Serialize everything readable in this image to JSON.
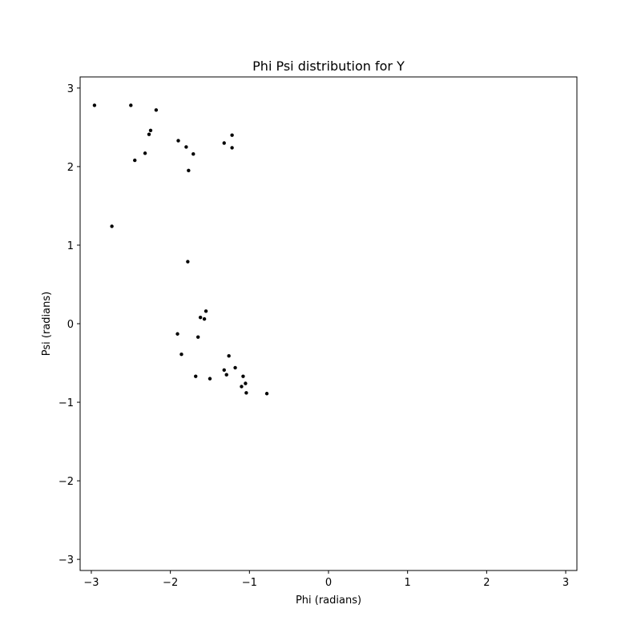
{
  "chart_data": {
    "type": "scatter",
    "title": "Phi Psi distribution for Y",
    "xlabel": "Phi (radians)",
    "ylabel": "Psi (radians)",
    "xlim": [
      -3.1416,
      3.1416
    ],
    "ylim": [
      -3.1416,
      3.1416
    ],
    "xticks": [
      -3,
      -2,
      -1,
      0,
      1,
      2,
      3
    ],
    "yticks": [
      -3,
      -2,
      -1,
      0,
      1,
      2,
      3
    ],
    "xtick_labels": [
      "−3",
      "−2",
      "−1",
      "0",
      "1",
      "2",
      "3"
    ],
    "ytick_labels": [
      "−3",
      "−2",
      "−1",
      "0",
      "1",
      "2",
      "3"
    ],
    "grid": false,
    "marker_color": "#000000",
    "series": [
      {
        "points": [
          [
            -2.96,
            2.78
          ],
          [
            -2.5,
            2.78
          ],
          [
            -2.18,
            2.72
          ],
          [
            -2.25,
            2.46
          ],
          [
            -2.27,
            2.41
          ],
          [
            -2.32,
            2.17
          ],
          [
            -2.45,
            2.08
          ],
          [
            -1.9,
            2.33
          ],
          [
            -1.8,
            2.25
          ],
          [
            -1.71,
            2.16
          ],
          [
            -1.77,
            1.95
          ],
          [
            -1.32,
            2.3
          ],
          [
            -1.22,
            2.4
          ],
          [
            -1.22,
            2.24
          ],
          [
            -2.74,
            1.24
          ],
          [
            -1.78,
            0.79
          ],
          [
            -1.55,
            0.16
          ],
          [
            -1.62,
            0.08
          ],
          [
            -1.57,
            0.06
          ],
          [
            -1.91,
            -0.13
          ],
          [
            -1.65,
            -0.17
          ],
          [
            -1.86,
            -0.39
          ],
          [
            -1.26,
            -0.41
          ],
          [
            -1.18,
            -0.56
          ],
          [
            -1.32,
            -0.59
          ],
          [
            -1.29,
            -0.65
          ],
          [
            -1.68,
            -0.67
          ],
          [
            -1.5,
            -0.7
          ],
          [
            -1.08,
            -0.67
          ],
          [
            -1.05,
            -0.76
          ],
          [
            -1.1,
            -0.8
          ],
          [
            -1.04,
            -0.88
          ],
          [
            -0.78,
            -0.89
          ]
        ]
      }
    ]
  }
}
